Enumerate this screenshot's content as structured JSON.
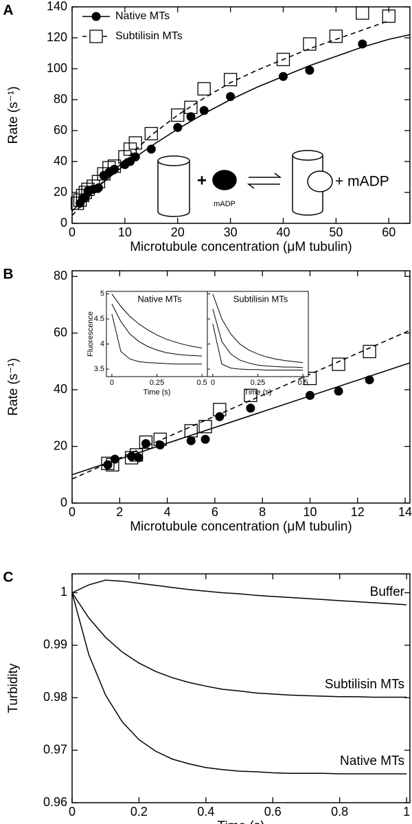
{
  "chart_data": [
    {
      "type": "scatter",
      "panel_label": "A",
      "xlabel": "Microtubule concentration (μM tubulin)",
      "ylabel": "Rate (s⁻¹)",
      "xlim": [
        0,
        64
      ],
      "xticks": [
        0,
        10,
        20,
        30,
        40,
        50,
        60
      ],
      "ylim": [
        0,
        140
      ],
      "yticks": [
        0,
        20,
        40,
        60,
        80,
        100,
        120,
        140
      ],
      "legend": "upper left",
      "scheme_labels": [
        "+",
        "mADP",
        "+ mADP"
      ],
      "series": [
        {
          "name": "Native MTs",
          "marker": "circle",
          "line": "solid",
          "color": "#000000",
          "x": [
            1.5,
            2,
            2.5,
            3,
            4,
            5,
            6,
            7,
            8,
            10,
            11,
            12,
            15,
            20,
            22.5,
            25,
            30,
            40,
            45,
            55
          ],
          "values": [
            13,
            16,
            17,
            21,
            22,
            23,
            31,
            33,
            35,
            38,
            40,
            43,
            48,
            62,
            69,
            73,
            82,
            95,
            99,
            116
          ],
          "fit_x": [
            0,
            5,
            10,
            15,
            20,
            25,
            30,
            35,
            40,
            45,
            50,
            55,
            60,
            64
          ],
          "fit_y": [
            8,
            24,
            38,
            50,
            61,
            71,
            80,
            88,
            95,
            102,
            108,
            114,
            119,
            122
          ]
        },
        {
          "name": "Subtilisin MTs",
          "marker": "square",
          "line": "dashed",
          "color": "#000000",
          "x": [
            1,
            1.5,
            2,
            2.5,
            3,
            4,
            5,
            6,
            7,
            8,
            10,
            11,
            12,
            15,
            20,
            22.5,
            25,
            30,
            40,
            45,
            50,
            55,
            60
          ],
          "values": [
            13,
            15,
            18,
            20,
            22,
            24,
            27,
            32,
            36,
            37,
            43,
            48,
            52,
            58,
            70,
            75,
            87,
            93,
            106,
            116,
            121,
            136,
            134
          ],
          "fit_x": [
            0,
            5,
            10,
            15,
            20,
            25,
            30,
            35,
            40,
            45,
            50,
            55,
            60
          ],
          "fit_y": [
            5,
            24,
            41,
            57,
            70,
            81,
            91,
            99,
            106,
            113,
            119,
            125,
            131
          ]
        }
      ]
    },
    {
      "type": "scatter",
      "panel_label": "B",
      "xlabel": "Microtubule concentration (μM tubulin)",
      "ylabel": "Rate (s⁻¹)",
      "xlim": [
        0,
        14.2
      ],
      "xticks": [
        0,
        2,
        4,
        6,
        8,
        10,
        12,
        14
      ],
      "ylim": [
        0,
        82
      ],
      "yticks": [
        0,
        20,
        40,
        60,
        80
      ],
      "series": [
        {
          "name": "Native MTs",
          "marker": "circle",
          "line": "solid",
          "color": "#000000",
          "x": [
            1.5,
            1.8,
            2.5,
            2.8,
            3.1,
            3.7,
            5,
            5.6,
            6.2,
            7.5,
            10,
            11.2,
            12.5
          ],
          "values": [
            13.5,
            15.5,
            16.5,
            16,
            21,
            20.5,
            22,
            22.5,
            30.5,
            33.5,
            38,
            39.5,
            43.5
          ],
          "fit_x": [
            0,
            14.2
          ],
          "fit_y": [
            10,
            49.5
          ]
        },
        {
          "name": "Subtilisin MTs",
          "marker": "square",
          "line": "dashed",
          "color": "#000000",
          "x": [
            1.5,
            1.7,
            2.5,
            2.7,
            3.1,
            3.7,
            5,
            5.6,
            6.2,
            7.5,
            10,
            11.2,
            12.5
          ],
          "values": [
            14,
            13.5,
            16,
            17,
            21.5,
            22.5,
            25.5,
            27,
            33,
            38,
            44,
            49,
            53.5
          ],
          "fit_x": [
            0,
            14.2
          ],
          "fit_y": [
            8.5,
            61
          ]
        }
      ],
      "inset": {
        "type": "line",
        "ylabel": "Fluorescence",
        "xlabel": "Time (s)",
        "xlim": [
          -0.03,
          0.53
        ],
        "xticks": [
          0,
          0.25,
          0.5
        ],
        "ylim": [
          3.35,
          5.05
        ],
        "yticks": [
          3.5,
          4,
          4.5,
          5
        ],
        "x": [
          0,
          0.05,
          0.1,
          0.15,
          0.2,
          0.25,
          0.3,
          0.35,
          0.4,
          0.45,
          0.5
        ],
        "panels": [
          {
            "title": "Native MTs",
            "traces": [
              [
                5,
                4.75,
                4.55,
                4.4,
                4.28,
                4.18,
                4.1,
                4.04,
                3.99,
                3.95,
                3.92
              ],
              [
                4.8,
                4.45,
                4.2,
                4.05,
                3.95,
                3.88,
                3.83,
                3.8,
                3.78,
                3.77,
                3.76
              ],
              [
                4.6,
                3.85,
                3.7,
                3.65,
                3.63,
                3.62,
                3.61,
                3.6,
                3.6,
                3.6,
                3.6
              ]
            ]
          },
          {
            "title": "Subtilisin MTs",
            "traces": [
              [
                5,
                4.5,
                4.2,
                4,
                3.88,
                3.8,
                3.74,
                3.7,
                3.67,
                3.65,
                3.63
              ],
              [
                4.7,
                4.05,
                3.8,
                3.68,
                3.62,
                3.58,
                3.56,
                3.55,
                3.54,
                3.54,
                3.53
              ],
              [
                4.4,
                3.6,
                3.52,
                3.5,
                3.49,
                3.49,
                3.48,
                3.48,
                3.48,
                3.48,
                3.48
              ]
            ]
          }
        ]
      }
    },
    {
      "type": "line",
      "panel_label": "C",
      "xlabel": "Time (s)",
      "ylabel": "Turbidity",
      "xlim": [
        0,
        1.01
      ],
      "xticks": [
        0,
        0.2,
        0.4,
        0.6,
        0.8,
        1
      ],
      "ylim": [
        0.96,
        1.0036
      ],
      "yticks": [
        0.96,
        0.97,
        0.98,
        0.99,
        1
      ],
      "x": [
        0,
        0.05,
        0.1,
        0.15,
        0.2,
        0.25,
        0.3,
        0.35,
        0.4,
        0.45,
        0.5,
        0.55,
        0.6,
        0.65,
        0.7,
        0.75,
        0.8,
        0.85,
        0.9,
        0.95,
        1
      ],
      "series": [
        {
          "name": "Buffer",
          "color": "#000000",
          "values": [
            1,
            1.0015,
            1.0024,
            1.0022,
            1.0018,
            1.0014,
            1.001,
            1.0006,
            1.0003,
            1,
            0.9998,
            0.9995,
            0.9993,
            0.9991,
            0.9989,
            0.9987,
            0.9985,
            0.9983,
            0.9981,
            0.9979,
            0.9977
          ]
        },
        {
          "name": "Subtilisin MTs",
          "color": "#000000",
          "values": [
            1,
            0.9952,
            0.9915,
            0.9887,
            0.9866,
            0.985,
            0.9838,
            0.9829,
            0.9822,
            0.9816,
            0.9813,
            0.9809,
            0.9807,
            0.9805,
            0.9804,
            0.9803,
            0.9802,
            0.9802,
            0.9801,
            0.9801,
            0.9801
          ]
        },
        {
          "name": "Native MTs",
          "color": "#000000",
          "values": [
            1,
            0.9882,
            0.9805,
            0.9754,
            0.972,
            0.9698,
            0.9683,
            0.9674,
            0.9667,
            0.9663,
            0.966,
            0.9659,
            0.9657,
            0.9656,
            0.9656,
            0.9656,
            0.9655,
            0.9655,
            0.9655,
            0.9655,
            0.9655
          ]
        }
      ]
    }
  ]
}
